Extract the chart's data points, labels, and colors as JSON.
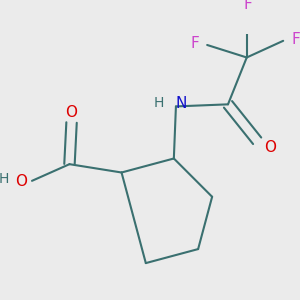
{
  "background_color": "#ebebeb",
  "bond_color": "#3a7070",
  "bond_width": 1.5,
  "atom_colors": {
    "O": "#dd0000",
    "N": "#1111cc",
    "F": "#cc44cc",
    "C": "#3a7070",
    "H": "#3a7070"
  },
  "font_size_atom": 11,
  "fig_size": [
    3.0,
    3.0
  ],
  "dpi": 100
}
